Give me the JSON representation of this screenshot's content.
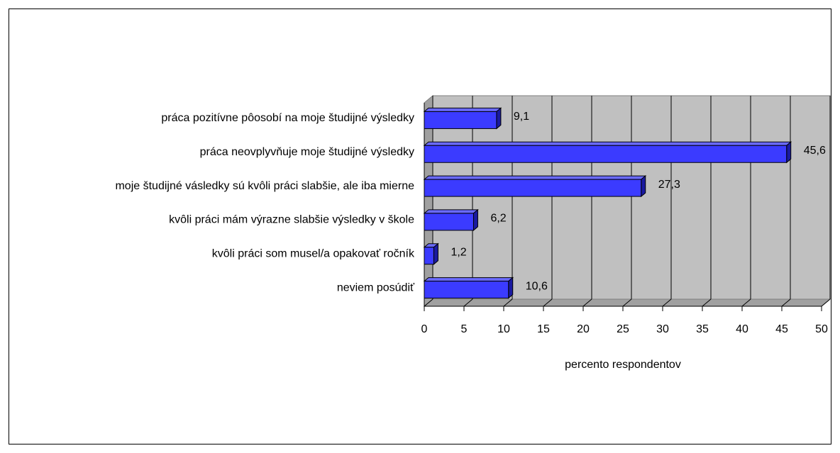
{
  "chart_data": {
    "type": "bar3d_horizontal",
    "categories": [
      "práca pozitívne pôosobí na moje študijné výsledky",
      "práca neovplyvňuje moje študijné výsledky",
      "moje študijné vásledky sú kvôli práci slabšie, ale iba mierne",
      "kvôli práci mám výrazne slabšie výsledky v škole",
      "kvôli práci som musel/a opakovať ročník",
      "neviem posúdiť"
    ],
    "values": [
      9.1,
      45.6,
      27.3,
      6.2,
      1.2,
      10.6
    ],
    "value_labels": [
      "9,1",
      "45,6",
      "27,3",
      "6,2",
      "1,2",
      "10,6"
    ],
    "color": "#3b3bff",
    "xlabel": "percento respondentov",
    "xlim": [
      0,
      50
    ],
    "xticks": [
      0,
      5,
      10,
      15,
      20,
      25,
      30,
      35,
      40,
      45,
      50
    ],
    "grid": true
  }
}
